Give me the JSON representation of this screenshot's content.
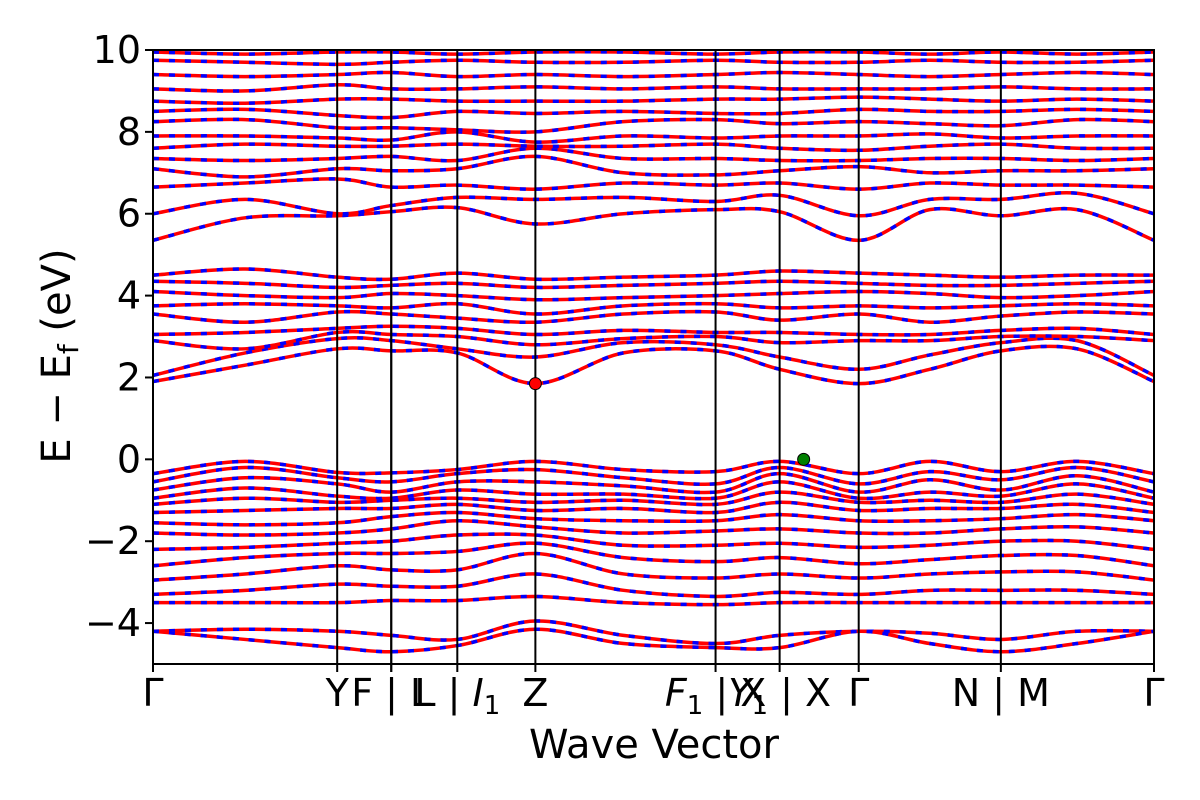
{
  "chart_data": {
    "type": "line",
    "title": "",
    "xlabel": "Wave Vector",
    "ylabel_main": "E − E",
    "ylabel_sub": "f",
    "ylabel_unit": " (eV)",
    "ylim": [
      -5,
      10
    ],
    "xlim": [
      0,
      1
    ],
    "y_ticks": [
      -4,
      -2,
      0,
      2,
      4,
      6,
      8,
      10
    ],
    "y_tick_labels": [
      "−4",
      "−2",
      "0",
      "2",
      "4",
      "6",
      "8",
      "10"
    ],
    "grid": false,
    "legend": "none",
    "high_symmetry_points": [
      {
        "x": 0.0,
        "label": "Γ"
      },
      {
        "x": 0.184,
        "label": "Y"
      },
      {
        "x": 0.238,
        "label": "F"
      },
      {
        "x": 0.238,
        "label": "F | L"
      },
      {
        "x": 0.304,
        "label": "L | I",
        "sub": "1"
      },
      {
        "x": 0.382,
        "label": "Z"
      },
      {
        "x": 0.562,
        "label": "F",
        "sub": "1",
        "after": " | X"
      },
      {
        "x": 0.626,
        "label": "Y",
        "sub": "1",
        "after": " | X"
      },
      {
        "x": 0.705,
        "label": "Γ"
      },
      {
        "x": 0.847,
        "label": "N | M"
      },
      {
        "x": 1.0,
        "label": "Γ"
      }
    ],
    "series": [
      {
        "color": "#ff0000",
        "dash": "none",
        "width": 3.5
      },
      {
        "color": "#0000ff",
        "dash": "6 10",
        "width": 3.5
      }
    ],
    "band_points_x": [
      0.0,
      0.092,
      0.184,
      0.238,
      0.304,
      0.382,
      0.47,
      0.562,
      0.626,
      0.705,
      0.776,
      0.847,
      0.923,
      1.0
    ],
    "valence_bands": [
      [
        -0.35,
        -0.05,
        -0.32,
        -0.33,
        -0.25,
        -0.05,
        -0.25,
        -0.3,
        -0.05,
        -0.35,
        -0.05,
        -0.3,
        -0.05,
        -0.35
      ],
      [
        -0.55,
        -0.2,
        -0.45,
        -0.55,
        -0.35,
        -0.25,
        -0.45,
        -0.6,
        -0.2,
        -0.6,
        -0.3,
        -0.5,
        -0.2,
        -0.55
      ],
      [
        -0.75,
        -0.45,
        -0.6,
        -0.8,
        -0.55,
        -0.55,
        -0.65,
        -0.8,
        -0.35,
        -0.8,
        -0.5,
        -0.75,
        -0.4,
        -0.8
      ],
      [
        -0.95,
        -0.7,
        -0.9,
        -0.95,
        -0.75,
        -0.85,
        -0.85,
        -0.95,
        -0.55,
        -0.95,
        -0.8,
        -0.9,
        -0.6,
        -0.95
      ],
      [
        -1.1,
        -0.95,
        -1.05,
        -1.0,
        -0.95,
        -1.05,
        -1.0,
        -1.1,
        -0.8,
        -1.05,
        -1.0,
        -1.05,
        -0.85,
        -1.1
      ],
      [
        -1.3,
        -1.25,
        -1.2,
        -1.2,
        -1.1,
        -1.25,
        -1.2,
        -1.3,
        -1.05,
        -1.25,
        -1.2,
        -1.2,
        -1.1,
        -1.3
      ],
      [
        -1.55,
        -1.6,
        -1.55,
        -1.4,
        -1.3,
        -1.45,
        -1.5,
        -1.5,
        -1.35,
        -1.5,
        -1.5,
        -1.45,
        -1.35,
        -1.5
      ],
      [
        -1.8,
        -1.85,
        -1.8,
        -1.7,
        -1.5,
        -1.65,
        -1.8,
        -1.75,
        -1.7,
        -1.8,
        -1.8,
        -1.7,
        -1.65,
        -1.8
      ],
      [
        -2.2,
        -2.15,
        -2.05,
        -2.0,
        -1.85,
        -1.85,
        -2.1,
        -2.1,
        -2.05,
        -2.15,
        -2.1,
        -2.0,
        -2.0,
        -2.2
      ],
      [
        -2.6,
        -2.4,
        -2.3,
        -2.3,
        -2.25,
        -2.05,
        -2.4,
        -2.5,
        -2.4,
        -2.55,
        -2.45,
        -2.35,
        -2.35,
        -2.6
      ],
      [
        -2.95,
        -2.8,
        -2.6,
        -2.7,
        -2.7,
        -2.3,
        -2.8,
        -2.9,
        -2.8,
        -2.9,
        -2.8,
        -2.75,
        -2.75,
        -2.95
      ],
      [
        -3.3,
        -3.2,
        -3.05,
        -3.1,
        -3.1,
        -2.8,
        -3.2,
        -3.35,
        -3.25,
        -3.3,
        -3.2,
        -3.2,
        -3.2,
        -3.3
      ],
      [
        -3.5,
        -3.5,
        -3.5,
        -3.45,
        -3.45,
        -3.35,
        -3.5,
        -3.55,
        -3.5,
        -3.5,
        -3.5,
        -3.5,
        -3.5,
        -3.5
      ],
      [
        -4.2,
        -4.15,
        -4.2,
        -4.3,
        -4.4,
        -3.95,
        -4.3,
        -4.5,
        -4.3,
        -4.2,
        -4.25,
        -4.4,
        -4.2,
        -4.2
      ],
      [
        -4.2,
        -4.4,
        -4.6,
        -4.7,
        -4.55,
        -4.15,
        -4.5,
        -4.6,
        -4.6,
        -4.2,
        -4.5,
        -4.7,
        -4.5,
        -4.2
      ]
    ],
    "conduction_bands": [
      [
        1.9,
        2.3,
        2.7,
        2.65,
        2.6,
        1.85,
        2.6,
        2.65,
        2.2,
        1.85,
        2.2,
        2.65,
        2.7,
        1.9
      ],
      [
        2.05,
        2.6,
        2.95,
        2.9,
        2.7,
        2.5,
        2.85,
        2.8,
        2.5,
        2.2,
        2.55,
        2.85,
        2.9,
        2.05
      ],
      [
        2.9,
        2.7,
        3.1,
        3.05,
        3.0,
        2.8,
        2.95,
        3.0,
        2.85,
        2.9,
        2.9,
        3.0,
        3.0,
        2.9
      ],
      [
        3.05,
        3.1,
        3.2,
        3.25,
        3.2,
        3.05,
        3.15,
        3.1,
        3.1,
        3.05,
        3.05,
        3.15,
        3.2,
        3.05
      ],
      [
        3.55,
        3.35,
        3.6,
        3.55,
        3.45,
        3.35,
        3.55,
        3.6,
        3.4,
        3.55,
        3.35,
        3.5,
        3.6,
        3.55
      ],
      [
        3.75,
        3.8,
        3.75,
        3.7,
        3.8,
        3.55,
        3.75,
        3.8,
        3.7,
        3.75,
        3.7,
        3.75,
        3.8,
        3.75
      ],
      [
        4.1,
        4.0,
        3.95,
        4.05,
        4.0,
        3.9,
        3.95,
        4.0,
        4.05,
        4.1,
        4.05,
        3.95,
        4.0,
        4.1
      ],
      [
        4.35,
        4.3,
        4.2,
        4.25,
        4.3,
        4.2,
        4.25,
        4.3,
        4.35,
        4.3,
        4.25,
        4.25,
        4.3,
        4.35
      ],
      [
        4.5,
        4.65,
        4.45,
        4.4,
        4.55,
        4.4,
        4.45,
        4.5,
        4.6,
        4.55,
        4.5,
        4.45,
        4.5,
        4.5
      ]
    ],
    "upper_bands": [
      [
        5.35,
        5.9,
        5.95,
        6.05,
        6.15,
        5.75,
        6.0,
        6.1,
        6.05,
        5.35,
        6.1,
        5.95,
        6.1,
        5.35
      ],
      [
        6.0,
        6.35,
        6.0,
        6.2,
        6.4,
        6.35,
        6.4,
        6.3,
        6.45,
        5.95,
        6.35,
        6.35,
        6.5,
        6.0
      ],
      [
        6.65,
        6.75,
        6.85,
        6.65,
        6.7,
        6.6,
        6.75,
        6.7,
        6.75,
        6.6,
        6.75,
        6.7,
        6.7,
        6.65
      ],
      [
        7.1,
        6.9,
        7.1,
        7.05,
        7.1,
        7.4,
        7.0,
        6.95,
        7.05,
        7.15,
        7.0,
        7.05,
        7.05,
        7.1
      ],
      [
        7.35,
        7.3,
        7.35,
        7.4,
        7.3,
        7.6,
        7.35,
        7.35,
        7.3,
        7.3,
        7.35,
        7.35,
        7.3,
        7.35
      ],
      [
        7.6,
        7.7,
        7.65,
        7.65,
        7.7,
        7.65,
        7.65,
        7.7,
        7.6,
        7.55,
        7.65,
        7.7,
        7.6,
        7.6
      ],
      [
        7.9,
        7.9,
        7.85,
        7.8,
        8.0,
        7.75,
        7.9,
        7.85,
        7.9,
        7.9,
        7.95,
        7.85,
        7.9,
        7.9
      ],
      [
        8.25,
        8.3,
        8.1,
        8.1,
        8.05,
        8.0,
        8.25,
        8.3,
        8.2,
        8.25,
        8.2,
        8.15,
        8.3,
        8.25
      ],
      [
        8.5,
        8.55,
        8.4,
        8.35,
        8.5,
        8.45,
        8.5,
        8.45,
        8.45,
        8.55,
        8.5,
        8.5,
        8.55,
        8.5
      ],
      [
        8.75,
        8.7,
        8.8,
        8.8,
        8.75,
        8.75,
        8.75,
        8.8,
        8.8,
        8.85,
        8.8,
        8.75,
        8.8,
        8.75
      ],
      [
        9.05,
        9.0,
        9.15,
        9.05,
        9.05,
        9.1,
        9.05,
        9.1,
        9.05,
        9.05,
        9.05,
        9.1,
        9.05,
        9.05
      ],
      [
        9.4,
        9.35,
        9.4,
        9.45,
        9.35,
        9.4,
        9.35,
        9.4,
        9.45,
        9.4,
        9.35,
        9.4,
        9.45,
        9.4
      ],
      [
        9.75,
        9.7,
        9.65,
        9.7,
        9.75,
        9.7,
        9.7,
        9.75,
        9.7,
        9.7,
        9.75,
        9.7,
        9.7,
        9.75
      ],
      [
        9.95,
        9.9,
        9.95,
        9.95,
        9.9,
        9.95,
        9.95,
        9.9,
        9.95,
        9.95,
        9.9,
        9.95,
        9.9,
        9.95
      ]
    ],
    "markers": [
      {
        "name": "cbm-marker",
        "x": 0.382,
        "y": 1.85,
        "color": "#ff0000"
      },
      {
        "name": "vbm-marker",
        "x": 0.65,
        "y": 0.0,
        "color": "#008000"
      }
    ]
  }
}
